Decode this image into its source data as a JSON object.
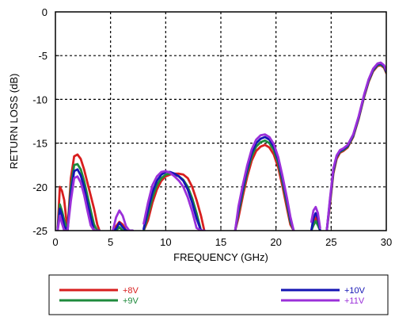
{
  "chart_data": {
    "type": "line",
    "xlabel": "FREQUENCY (GHz)",
    "ylabel": "RETURN LOSS (dB)",
    "xlim": [
      0,
      30
    ],
    "ylim": [
      -25,
      0
    ],
    "xticks": [
      "0",
      "5",
      "10",
      "15",
      "20",
      "25",
      "30"
    ],
    "yticks": [
      "0",
      "-5",
      "-10",
      "-15",
      "-20",
      "-25"
    ],
    "grid": true,
    "legend_position": "bottom, below plot",
    "series": [
      {
        "name": "+8V",
        "color": "#d81e1e",
        "x": [
          0.2,
          0.4,
          0.6,
          0.8,
          1.1,
          1.4,
          1.7,
          2.0,
          2.3,
          2.6,
          2.9,
          3.2,
          3.5,
          3.8,
          4.0,
          null,
          5.2,
          5.5,
          5.8,
          6.1,
          6.4,
          6.7,
          7.0,
          null,
          8.0,
          8.4,
          8.8,
          9.2,
          9.6,
          10.0,
          10.4,
          10.8,
          11.2,
          11.6,
          12.0,
          12.4,
          12.8,
          13.2,
          13.5,
          null,
          16.3,
          16.6,
          17.0,
          17.4,
          17.8,
          18.2,
          18.6,
          19.0,
          19.4,
          19.8,
          20.2,
          20.6,
          21.0,
          21.3,
          21.6,
          null,
          23.2,
          23.4,
          23.6,
          23.8,
          24.0,
          null,
          24.6,
          24.9,
          25.2,
          25.5,
          25.8,
          26.1,
          26.5,
          27.0,
          27.5,
          28.0,
          28.4,
          28.8,
          29.2,
          29.5,
          29.8,
          30.0
        ],
        "y": [
          -25,
          -20.0,
          -20.5,
          -21.5,
          -25,
          -19.0,
          -16.5,
          -16.3,
          -16.8,
          -18.0,
          -19.5,
          -21.0,
          -22.5,
          -24.3,
          -25,
          null,
          -25,
          -24.5,
          -24.0,
          -24.3,
          -25,
          -25,
          -25,
          null,
          -25,
          -23.8,
          -21.8,
          -20.3,
          -19.3,
          -18.8,
          -18.6,
          -18.5,
          -18.5,
          -18.6,
          -19.0,
          -20.0,
          -21.5,
          -23.3,
          -25,
          null,
          -25,
          -23.5,
          -21.0,
          -18.8,
          -17.0,
          -15.9,
          -15.4,
          -15.2,
          -15.5,
          -16.3,
          -17.8,
          -20.0,
          -22.5,
          -24.3,
          -25,
          null,
          -25,
          -24.0,
          -23.5,
          -24.0,
          -25,
          null,
          -25,
          -22.0,
          -18.5,
          -16.8,
          -16.1,
          -15.9,
          -15.5,
          -14.3,
          -12.2,
          -9.7,
          -8.0,
          -6.8,
          -6.2,
          -6.1,
          -6.4,
          -7.0
        ]
      },
      {
        "name": "+9V",
        "color": "#1e8a3c",
        "x": [
          0.2,
          0.4,
          0.6,
          0.8,
          1.1,
          1.4,
          1.7,
          2.0,
          2.3,
          2.6,
          2.9,
          3.2,
          3.5,
          3.8,
          4.0,
          null,
          5.2,
          5.5,
          5.8,
          6.1,
          6.4,
          6.7,
          7.0,
          null,
          8.0,
          8.4,
          8.8,
          9.2,
          9.6,
          10.0,
          10.4,
          10.8,
          11.2,
          11.6,
          12.0,
          12.4,
          12.8,
          13.2,
          13.5,
          null,
          16.3,
          16.6,
          17.0,
          17.4,
          17.8,
          18.2,
          18.6,
          19.0,
          19.4,
          19.8,
          20.2,
          20.6,
          21.0,
          21.3,
          21.6,
          null,
          23.2,
          23.4,
          23.6,
          23.8,
          24.0,
          null,
          24.6,
          24.9,
          25.2,
          25.5,
          25.8,
          26.1,
          26.5,
          27.0,
          27.5,
          28.0,
          28.4,
          28.8,
          29.2,
          29.5,
          29.8,
          30.0
        ],
        "y": [
          -25,
          -22.0,
          -22.8,
          -23.8,
          -25,
          -20.0,
          -17.5,
          -17.4,
          -18.0,
          -19.3,
          -21.0,
          -22.7,
          -24.3,
          -25,
          -25,
          null,
          -25,
          -25,
          -24.6,
          -25,
          -25,
          -25,
          -25,
          null,
          -25,
          -23.2,
          -21.2,
          -19.8,
          -19.0,
          -18.6,
          -18.5,
          -18.6,
          -18.8,
          -19.2,
          -20.0,
          -21.3,
          -23.0,
          -25,
          -25,
          null,
          -25,
          -23.0,
          -20.5,
          -18.3,
          -16.5,
          -15.4,
          -14.9,
          -14.7,
          -15.0,
          -15.8,
          -17.3,
          -19.5,
          -22.0,
          -24.0,
          -25,
          null,
          -25,
          -24.4,
          -23.9,
          -24.4,
          -25,
          null,
          -25,
          -21.7,
          -18.3,
          -16.6,
          -16.0,
          -15.8,
          -15.4,
          -14.2,
          -12.1,
          -9.6,
          -7.9,
          -6.7,
          -6.1,
          -6.0,
          -6.3,
          -6.9
        ]
      },
      {
        "name": "+10V",
        "color": "#1414b4",
        "x": [
          0.2,
          0.4,
          0.6,
          0.8,
          1.1,
          1.4,
          1.7,
          2.0,
          2.3,
          2.6,
          2.9,
          3.2,
          3.5,
          3.8,
          4.0,
          null,
          5.2,
          5.5,
          5.8,
          6.1,
          6.4,
          6.7,
          7.0,
          null,
          8.0,
          8.4,
          8.8,
          9.2,
          9.6,
          10.0,
          10.4,
          10.8,
          11.2,
          11.6,
          12.0,
          12.4,
          12.8,
          13.2,
          13.5,
          null,
          16.3,
          16.6,
          17.0,
          17.4,
          17.8,
          18.2,
          18.6,
          19.0,
          19.4,
          19.8,
          20.2,
          20.6,
          21.0,
          21.3,
          21.6,
          null,
          23.2,
          23.4,
          23.6,
          23.8,
          24.0,
          null,
          24.6,
          24.9,
          25.2,
          25.5,
          25.8,
          26.1,
          26.5,
          27.0,
          27.5,
          28.0,
          28.4,
          28.8,
          29.2,
          29.5,
          29.8,
          30.0
        ],
        "y": [
          -25,
          -22.5,
          -23.3,
          -24.5,
          -25,
          -20.8,
          -18.2,
          -18.0,
          -18.7,
          -20.0,
          -21.8,
          -23.5,
          -25,
          -25,
          -25,
          null,
          -25,
          -24.8,
          -24.1,
          -24.6,
          -25,
          -25,
          -25,
          null,
          -24.8,
          -22.6,
          -20.6,
          -19.3,
          -18.6,
          -18.3,
          -18.3,
          -18.5,
          -18.8,
          -19.3,
          -20.3,
          -21.8,
          -23.6,
          -25,
          -25,
          null,
          -25,
          -22.6,
          -20.1,
          -17.9,
          -16.1,
          -15.0,
          -14.5,
          -14.3,
          -14.6,
          -15.4,
          -16.9,
          -19.1,
          -21.6,
          -23.7,
          -25,
          null,
          -25,
          -23.6,
          -23.0,
          -23.6,
          -25,
          null,
          -25,
          -21.5,
          -18.1,
          -16.5,
          -15.9,
          -15.7,
          -15.3,
          -14.1,
          -12.0,
          -9.5,
          -7.8,
          -6.6,
          -6.0,
          -5.9,
          -6.2,
          -6.8
        ]
      },
      {
        "name": "+11V",
        "color": "#9b30d9",
        "x": [
          0.2,
          0.4,
          0.6,
          0.8,
          1.1,
          1.4,
          1.7,
          2.0,
          2.3,
          2.6,
          2.9,
          3.2,
          3.5,
          3.8,
          4.0,
          null,
          5.2,
          5.5,
          5.8,
          6.1,
          6.4,
          6.7,
          7.0,
          null,
          8.0,
          8.4,
          8.8,
          9.2,
          9.6,
          10.0,
          10.4,
          10.8,
          11.2,
          11.6,
          12.0,
          12.4,
          12.8,
          13.2,
          13.5,
          null,
          16.3,
          16.6,
          17.0,
          17.4,
          17.8,
          18.2,
          18.6,
          19.0,
          19.4,
          19.8,
          20.2,
          20.6,
          21.0,
          21.3,
          21.6,
          null,
          23.2,
          23.4,
          23.6,
          23.8,
          24.0,
          null,
          24.6,
          24.9,
          25.2,
          25.5,
          25.8,
          26.1,
          26.5,
          27.0,
          27.5,
          28.0,
          28.4,
          28.8,
          29.2,
          29.5,
          29.8,
          30.0
        ],
        "y": [
          -25,
          -23.3,
          -24.2,
          -25,
          -25,
          -21.6,
          -19.0,
          -18.8,
          -19.5,
          -20.9,
          -22.7,
          -24.4,
          -25,
          -25,
          -25,
          null,
          -25,
          -23.5,
          -22.7,
          -23.3,
          -24.5,
          -25,
          -25,
          null,
          -24.2,
          -21.8,
          -19.8,
          -18.8,
          -18.3,
          -18.2,
          -18.4,
          -18.8,
          -19.3,
          -20.0,
          -21.2,
          -22.8,
          -24.7,
          -25,
          -25,
          null,
          -25,
          -22.2,
          -19.7,
          -17.5,
          -15.7,
          -14.6,
          -14.1,
          -14.0,
          -14.3,
          -15.1,
          -16.6,
          -18.8,
          -21.3,
          -23.4,
          -25,
          null,
          -24.0,
          -22.7,
          -22.3,
          -23.0,
          -24.7,
          null,
          -25,
          -21.3,
          -17.9,
          -16.4,
          -15.8,
          -15.6,
          -15.2,
          -14.0,
          -11.9,
          -9.4,
          -7.7,
          -6.5,
          -5.9,
          -5.8,
          -6.1,
          -6.7
        ]
      }
    ]
  }
}
